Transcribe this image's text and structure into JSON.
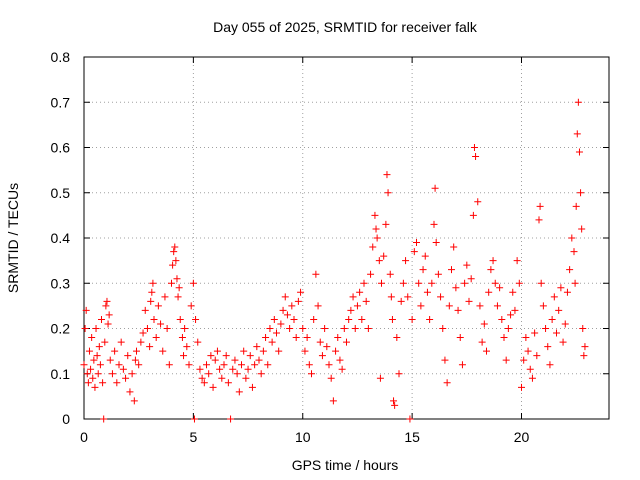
{
  "chart_data": {
    "type": "scatter",
    "title": "Day 055 of 2025, SRMTID for receiver falk",
    "xlabel": "GPS time / hours",
    "ylabel": "SRMTID / TECUs",
    "xlim": [
      0,
      24
    ],
    "ylim": [
      0,
      0.8
    ],
    "grid": true,
    "marker": "+",
    "color": "#ff0000",
    "x_ticks": [
      0,
      5,
      10,
      15,
      20
    ],
    "x_tick_labels": [
      "0",
      "5",
      "10",
      "15",
      "20"
    ],
    "y_ticks": [
      0,
      0.1,
      0.2,
      0.3,
      0.4,
      0.5,
      0.6,
      0.7,
      0.8
    ],
    "y_tick_labels": [
      "0",
      "0.1",
      "0.2",
      "0.3",
      "0.4",
      "0.5",
      "0.6",
      "0.7",
      "0.8"
    ],
    "series": [
      {
        "name": "SRMTID",
        "points": [
          [
            0.0,
            0.12
          ],
          [
            0.05,
            0.2
          ],
          [
            0.1,
            0.24
          ],
          [
            0.15,
            0.1
          ],
          [
            0.2,
            0.08
          ],
          [
            0.25,
            0.15
          ],
          [
            0.3,
            0.11
          ],
          [
            0.35,
            0.18
          ],
          [
            0.4,
            0.09
          ],
          [
            0.45,
            0.13
          ],
          [
            0.5,
            0.07
          ],
          [
            0.55,
            0.2
          ],
          [
            0.6,
            0.14
          ],
          [
            0.65,
            0.1
          ],
          [
            0.7,
            0.16
          ],
          [
            0.75,
            0.12
          ],
          [
            0.8,
            0.22
          ],
          [
            0.85,
            0.08
          ],
          [
            0.9,
            0.0
          ],
          [
            0.95,
            0.17
          ],
          [
            1.0,
            0.25
          ],
          [
            1.05,
            0.26
          ],
          [
            1.1,
            0.21
          ],
          [
            1.15,
            0.23
          ],
          [
            1.2,
            0.13
          ],
          [
            1.3,
            0.1
          ],
          [
            1.4,
            0.15
          ],
          [
            1.5,
            0.08
          ],
          [
            1.6,
            0.12
          ],
          [
            1.7,
            0.17
          ],
          [
            1.8,
            0.11
          ],
          [
            1.9,
            0.09
          ],
          [
            2.0,
            0.14
          ],
          [
            2.1,
            0.06
          ],
          [
            2.2,
            0.1
          ],
          [
            2.3,
            0.04
          ],
          [
            2.35,
            0.13
          ],
          [
            2.4,
            0.15
          ],
          [
            2.5,
            0.12
          ],
          [
            2.6,
            0.17
          ],
          [
            2.7,
            0.19
          ],
          [
            2.8,
            0.24
          ],
          [
            2.9,
            0.2
          ],
          [
            3.0,
            0.16
          ],
          [
            3.05,
            0.26
          ],
          [
            3.1,
            0.28
          ],
          [
            3.15,
            0.3
          ],
          [
            3.2,
            0.22
          ],
          [
            3.3,
            0.18
          ],
          [
            3.4,
            0.25
          ],
          [
            3.5,
            0.21
          ],
          [
            3.6,
            0.15
          ],
          [
            3.7,
            0.27
          ],
          [
            3.8,
            0.2
          ],
          [
            3.9,
            0.12
          ],
          [
            4.0,
            0.3
          ],
          [
            4.05,
            0.34
          ],
          [
            4.1,
            0.37
          ],
          [
            4.15,
            0.38
          ],
          [
            4.2,
            0.35
          ],
          [
            4.25,
            0.31
          ],
          [
            4.3,
            0.27
          ],
          [
            4.35,
            0.29
          ],
          [
            4.4,
            0.22
          ],
          [
            4.5,
            0.18
          ],
          [
            4.55,
            0.14
          ],
          [
            4.6,
            0.2
          ],
          [
            4.7,
            0.16
          ],
          [
            4.8,
            0.12
          ],
          [
            4.9,
            0.25
          ],
          [
            5.0,
            0.3
          ],
          [
            5.05,
            0.0
          ],
          [
            5.1,
            0.22
          ],
          [
            5.2,
            0.17
          ],
          [
            5.3,
            0.11
          ],
          [
            5.4,
            0.09
          ],
          [
            5.5,
            0.08
          ],
          [
            5.6,
            0.12
          ],
          [
            5.7,
            0.1
          ],
          [
            5.8,
            0.14
          ],
          [
            5.9,
            0.07
          ],
          [
            6.0,
            0.13
          ],
          [
            6.1,
            0.15
          ],
          [
            6.2,
            0.11
          ],
          [
            6.3,
            0.09
          ],
          [
            6.4,
            0.12
          ],
          [
            6.5,
            0.14
          ],
          [
            6.6,
            0.08
          ],
          [
            6.7,
            0.0
          ],
          [
            6.8,
            0.11
          ],
          [
            6.9,
            0.13
          ],
          [
            7.0,
            0.1
          ],
          [
            7.1,
            0.06
          ],
          [
            7.2,
            0.12
          ],
          [
            7.3,
            0.15
          ],
          [
            7.4,
            0.09
          ],
          [
            7.5,
            0.11
          ],
          [
            7.6,
            0.14
          ],
          [
            7.7,
            0.07
          ],
          [
            7.8,
            0.12
          ],
          [
            7.9,
            0.16
          ],
          [
            8.0,
            0.13
          ],
          [
            8.1,
            0.1
          ],
          [
            8.2,
            0.15
          ],
          [
            8.3,
            0.18
          ],
          [
            8.4,
            0.12
          ],
          [
            8.5,
            0.2
          ],
          [
            8.6,
            0.17
          ],
          [
            8.7,
            0.22
          ],
          [
            8.8,
            0.19
          ],
          [
            8.9,
            0.15
          ],
          [
            9.0,
            0.21
          ],
          [
            9.1,
            0.24
          ],
          [
            9.2,
            0.27
          ],
          [
            9.3,
            0.23
          ],
          [
            9.4,
            0.2
          ],
          [
            9.5,
            0.25
          ],
          [
            9.6,
            0.22
          ],
          [
            9.7,
            0.18
          ],
          [
            9.8,
            0.26
          ],
          [
            9.9,
            0.28
          ],
          [
            10.0,
            0.2
          ],
          [
            10.1,
            0.15
          ],
          [
            10.2,
            0.18
          ],
          [
            10.3,
            0.12
          ],
          [
            10.4,
            0.1
          ],
          [
            10.5,
            0.22
          ],
          [
            10.6,
            0.32
          ],
          [
            10.7,
            0.25
          ],
          [
            10.8,
            0.17
          ],
          [
            10.9,
            0.14
          ],
          [
            11.0,
            0.2
          ],
          [
            11.1,
            0.16
          ],
          [
            11.2,
            0.12
          ],
          [
            11.3,
            0.09
          ],
          [
            11.4,
            0.04
          ],
          [
            11.5,
            0.15
          ],
          [
            11.6,
            0.18
          ],
          [
            11.7,
            0.13
          ],
          [
            11.8,
            0.11
          ],
          [
            11.9,
            0.2
          ],
          [
            12.0,
            0.17
          ],
          [
            12.1,
            0.22
          ],
          [
            12.2,
            0.24
          ],
          [
            12.3,
            0.27
          ],
          [
            12.4,
            0.2
          ],
          [
            12.5,
            0.25
          ],
          [
            12.6,
            0.28
          ],
          [
            12.7,
            0.22
          ],
          [
            12.8,
            0.3
          ],
          [
            12.9,
            0.26
          ],
          [
            13.0,
            0.2
          ],
          [
            13.1,
            0.32
          ],
          [
            13.2,
            0.38
          ],
          [
            13.3,
            0.45
          ],
          [
            13.35,
            0.42
          ],
          [
            13.4,
            0.4
          ],
          [
            13.5,
            0.35
          ],
          [
            13.55,
            0.09
          ],
          [
            13.6,
            0.3
          ],
          [
            13.7,
            0.36
          ],
          [
            13.8,
            0.43
          ],
          [
            13.85,
            0.54
          ],
          [
            13.9,
            0.5
          ],
          [
            14.0,
            0.32
          ],
          [
            14.05,
            0.27
          ],
          [
            14.1,
            0.22
          ],
          [
            14.15,
            0.04
          ],
          [
            14.2,
            0.03
          ],
          [
            14.3,
            0.18
          ],
          [
            14.4,
            0.1
          ],
          [
            14.5,
            0.26
          ],
          [
            14.6,
            0.3
          ],
          [
            14.7,
            0.35
          ],
          [
            14.8,
            0.27
          ],
          [
            14.9,
            0.0
          ],
          [
            15.0,
            0.22
          ],
          [
            15.1,
            0.37
          ],
          [
            15.2,
            0.39
          ],
          [
            15.3,
            0.3
          ],
          [
            15.4,
            0.25
          ],
          [
            15.5,
            0.33
          ],
          [
            15.6,
            0.36
          ],
          [
            15.7,
            0.28
          ],
          [
            15.8,
            0.22
          ],
          [
            15.9,
            0.3
          ],
          [
            16.0,
            0.43
          ],
          [
            16.05,
            0.51
          ],
          [
            16.1,
            0.39
          ],
          [
            16.2,
            0.32
          ],
          [
            16.3,
            0.27
          ],
          [
            16.4,
            0.2
          ],
          [
            16.5,
            0.13
          ],
          [
            16.6,
            0.08
          ],
          [
            16.7,
            0.25
          ],
          [
            16.8,
            0.33
          ],
          [
            16.9,
            0.38
          ],
          [
            17.0,
            0.29
          ],
          [
            17.1,
            0.24
          ],
          [
            17.2,
            0.18
          ],
          [
            17.3,
            0.12
          ],
          [
            17.4,
            0.3
          ],
          [
            17.5,
            0.34
          ],
          [
            17.6,
            0.26
          ],
          [
            17.7,
            0.31
          ],
          [
            17.8,
            0.45
          ],
          [
            17.85,
            0.6
          ],
          [
            17.9,
            0.58
          ],
          [
            18.0,
            0.48
          ],
          [
            18.1,
            0.25
          ],
          [
            18.2,
            0.17
          ],
          [
            18.3,
            0.21
          ],
          [
            18.4,
            0.15
          ],
          [
            18.5,
            0.28
          ],
          [
            18.6,
            0.33
          ],
          [
            18.7,
            0.35
          ],
          [
            18.8,
            0.3
          ],
          [
            18.9,
            0.25
          ],
          [
            19.0,
            0.29
          ],
          [
            19.1,
            0.22
          ],
          [
            19.2,
            0.18
          ],
          [
            19.3,
            0.13
          ],
          [
            19.4,
            0.2
          ],
          [
            19.5,
            0.23
          ],
          [
            19.6,
            0.28
          ],
          [
            19.7,
            0.24
          ],
          [
            19.8,
            0.35
          ],
          [
            19.9,
            0.3
          ],
          [
            20.0,
            0.07
          ],
          [
            20.1,
            0.13
          ],
          [
            20.2,
            0.18
          ],
          [
            20.3,
            0.15
          ],
          [
            20.4,
            0.11
          ],
          [
            20.5,
            0.09
          ],
          [
            20.6,
            0.19
          ],
          [
            20.7,
            0.14
          ],
          [
            20.8,
            0.44
          ],
          [
            20.85,
            0.47
          ],
          [
            20.9,
            0.3
          ],
          [
            21.0,
            0.25
          ],
          [
            21.1,
            0.2
          ],
          [
            21.2,
            0.16
          ],
          [
            21.3,
            0.12
          ],
          [
            21.4,
            0.22
          ],
          [
            21.5,
            0.27
          ],
          [
            21.6,
            0.19
          ],
          [
            21.7,
            0.24
          ],
          [
            21.8,
            0.29
          ],
          [
            21.9,
            0.17
          ],
          [
            22.0,
            0.21
          ],
          [
            22.1,
            0.28
          ],
          [
            22.2,
            0.33
          ],
          [
            22.3,
            0.4
          ],
          [
            22.4,
            0.37
          ],
          [
            22.45,
            0.3
          ],
          [
            22.5,
            0.47
          ],
          [
            22.55,
            0.63
          ],
          [
            22.6,
            0.7
          ],
          [
            22.65,
            0.59
          ],
          [
            22.7,
            0.5
          ],
          [
            22.75,
            0.42
          ],
          [
            22.8,
            0.2
          ],
          [
            22.85,
            0.14
          ],
          [
            22.9,
            0.16
          ]
        ]
      }
    ]
  }
}
